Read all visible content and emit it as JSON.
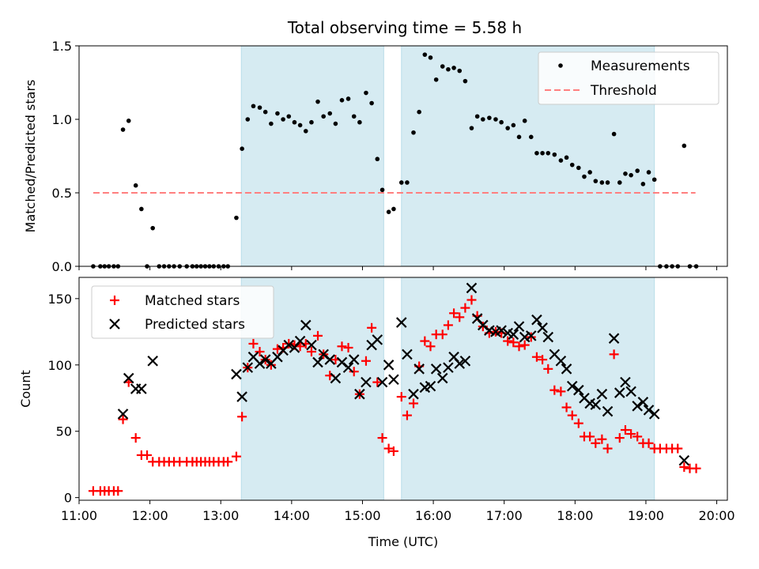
{
  "title": "Total observing time = 5.58 h",
  "chart_data": [
    {
      "type": "scatter",
      "panel": "top",
      "ylabel": "Matched/Predicted stars",
      "xlabel": "",
      "xlim": [
        11.0,
        20.15
      ],
      "ylim": [
        0.0,
        1.5
      ],
      "yticks": [
        0.0,
        0.5,
        1.0,
        1.5
      ],
      "ytick_labels": [
        "0.0",
        "0.5",
        "1.0",
        "1.5"
      ],
      "legend": {
        "placement": "top-right",
        "entries": [
          "Measurements",
          "Threshold"
        ]
      },
      "shaded_spans": [
        [
          13.29,
          15.3
        ],
        [
          15.55,
          19.12
        ]
      ],
      "threshold": {
        "name": "Threshold",
        "y": 0.5,
        "x_start": 11.2,
        "x_end": 19.7,
        "color": "#ff7f7f",
        "style": "dashed"
      },
      "series": [
        {
          "name": "Measurements",
          "color": "#000000",
          "x": [
            11.2,
            11.3,
            11.36,
            11.42,
            11.49,
            11.55,
            11.62,
            11.7,
            11.8,
            11.88,
            11.96,
            12.04,
            12.13,
            12.2,
            12.27,
            12.34,
            12.42,
            12.52,
            12.6,
            12.66,
            12.72,
            12.78,
            12.84,
            12.9,
            12.97,
            13.04,
            13.1,
            13.22,
            13.3,
            13.38,
            13.46,
            13.55,
            13.63,
            13.71,
            13.8,
            13.88,
            13.96,
            14.04,
            14.12,
            14.2,
            14.28,
            14.37,
            14.45,
            14.54,
            14.62,
            14.71,
            14.8,
            14.88,
            14.96,
            15.05,
            15.13,
            15.21,
            15.28,
            15.37,
            15.44,
            15.55,
            15.63,
            15.72,
            15.8,
            15.88,
            15.96,
            16.04,
            16.13,
            16.21,
            16.29,
            16.37,
            16.45,
            16.54,
            16.62,
            16.7,
            16.79,
            16.88,
            16.96,
            17.05,
            17.13,
            17.21,
            17.29,
            17.38,
            17.46,
            17.54,
            17.62,
            17.71,
            17.8,
            17.88,
            17.96,
            18.05,
            18.13,
            18.21,
            18.29,
            18.38,
            18.46,
            18.55,
            18.63,
            18.71,
            18.79,
            18.88,
            18.96,
            19.04,
            19.12,
            19.2,
            19.29,
            19.37,
            19.45,
            19.54,
            19.62,
            19.71
          ],
          "y": [
            0.0,
            0.0,
            0.0,
            0.0,
            0.0,
            0.0,
            0.93,
            0.99,
            0.55,
            0.39,
            0.0,
            0.26,
            0.0,
            0.0,
            0.0,
            0.0,
            0.0,
            0.0,
            0.0,
            0.0,
            0.0,
            0.0,
            0.0,
            0.0,
            0.0,
            0.0,
            0.0,
            0.33,
            0.8,
            1.0,
            1.09,
            1.08,
            1.05,
            0.97,
            1.04,
            1.0,
            1.02,
            0.98,
            0.96,
            0.92,
            0.98,
            1.12,
            1.02,
            1.04,
            0.97,
            1.13,
            1.14,
            1.02,
            0.98,
            1.18,
            1.11,
            0.73,
            0.52,
            0.37,
            0.39,
            0.57,
            0.57,
            0.91,
            1.05,
            1.44,
            1.42,
            1.27,
            1.36,
            1.34,
            1.35,
            1.33,
            1.26,
            0.94,
            1.02,
            1.0,
            1.01,
            1.0,
            0.98,
            0.94,
            0.96,
            0.88,
            0.99,
            0.88,
            0.77,
            0.77,
            0.77,
            0.76,
            0.72,
            0.74,
            0.69,
            0.67,
            0.61,
            0.64,
            0.58,
            0.57,
            0.57,
            0.9,
            0.57,
            0.63,
            0.62,
            0.65,
            0.56,
            0.64,
            0.59,
            0.0,
            0.0,
            0.0,
            0.0,
            0.82,
            0.0,
            0.0
          ]
        }
      ]
    },
    {
      "type": "scatter",
      "panel": "bottom",
      "xlabel": "Time (UTC)",
      "ylabel": "Count",
      "xlim": [
        11.0,
        20.15
      ],
      "ylim": [
        -2,
        166
      ],
      "yticks": [
        0,
        50,
        100,
        150
      ],
      "ytick_labels": [
        "0",
        "50",
        "100",
        "150"
      ],
      "xticks": [
        11,
        12,
        13,
        14,
        15,
        16,
        17,
        18,
        19,
        20
      ],
      "xtick_labels": [
        "11:00",
        "12:00",
        "13:00",
        "14:00",
        "15:00",
        "16:00",
        "17:00",
        "18:00",
        "19:00",
        "20:00"
      ],
      "legend": {
        "placement": "top-left",
        "entries": [
          "Matched stars",
          "Predicted stars"
        ]
      },
      "shaded_spans": [
        [
          13.29,
          15.3
        ],
        [
          15.55,
          19.12
        ]
      ],
      "series": [
        {
          "name": "Matched stars",
          "marker": "+",
          "color": "#ff0000",
          "x": [
            11.2,
            11.3,
            11.36,
            11.42,
            11.49,
            11.55,
            11.62,
            11.7,
            11.8,
            11.88,
            11.96,
            12.04,
            12.13,
            12.2,
            12.27,
            12.34,
            12.42,
            12.52,
            12.6,
            12.66,
            12.72,
            12.78,
            12.84,
            12.9,
            12.97,
            13.04,
            13.1,
            13.22,
            13.3,
            13.38,
            13.46,
            13.55,
            13.63,
            13.71,
            13.8,
            13.88,
            13.96,
            14.04,
            14.12,
            14.2,
            14.28,
            14.37,
            14.45,
            14.54,
            14.62,
            14.71,
            14.8,
            14.88,
            14.96,
            15.05,
            15.13,
            15.21,
            15.28,
            15.37,
            15.44,
            15.55,
            15.63,
            15.72,
            15.8,
            15.88,
            15.96,
            16.04,
            16.13,
            16.21,
            16.29,
            16.37,
            16.45,
            16.54,
            16.62,
            16.7,
            16.79,
            16.88,
            16.96,
            17.05,
            17.13,
            17.21,
            17.29,
            17.38,
            17.46,
            17.54,
            17.62,
            17.71,
            17.8,
            17.88,
            17.96,
            18.05,
            18.13,
            18.21,
            18.29,
            18.38,
            18.46,
            18.55,
            18.63,
            18.71,
            18.79,
            18.88,
            18.96,
            19.04,
            19.12,
            19.2,
            19.29,
            19.37,
            19.45,
            19.54,
            19.62,
            19.71
          ],
          "y": [
            5,
            5,
            5,
            5,
            5,
            5,
            59,
            87,
            45,
            32,
            32,
            27,
            27,
            27,
            27,
            27,
            27,
            27,
            27,
            27,
            27,
            27,
            27,
            27,
            27,
            27,
            27,
            31,
            61,
            98,
            116,
            110,
            104,
            100,
            112,
            113,
            116,
            115,
            114,
            116,
            110,
            122,
            108,
            92,
            104,
            114,
            113,
            95,
            78,
            103,
            128,
            87,
            45,
            37,
            35,
            76,
            62,
            71,
            99,
            118,
            114,
            123,
            123,
            130,
            139,
            136,
            143,
            149,
            137,
            129,
            124,
            125,
            124,
            118,
            117,
            114,
            115,
            121,
            106,
            104,
            97,
            81,
            80,
            68,
            62,
            56,
            46,
            46,
            41,
            44,
            37,
            108,
            45,
            51,
            48,
            46,
            41,
            41,
            37,
            37,
            37,
            37,
            37,
            23,
            22,
            22
          ]
        },
        {
          "name": "Predicted stars",
          "marker": "x",
          "color": "#000000",
          "x": [
            11.62,
            11.7,
            11.8,
            11.88,
            12.04,
            13.22,
            13.3,
            13.38,
            13.46,
            13.55,
            13.63,
            13.71,
            13.8,
            13.88,
            13.96,
            14.04,
            14.12,
            14.2,
            14.28,
            14.37,
            14.45,
            14.54,
            14.62,
            14.71,
            14.8,
            14.88,
            14.96,
            15.05,
            15.13,
            15.21,
            15.28,
            15.37,
            15.44,
            15.55,
            15.63,
            15.72,
            15.8,
            15.88,
            15.96,
            16.04,
            16.13,
            16.21,
            16.29,
            16.37,
            16.45,
            16.54,
            16.62,
            16.7,
            16.79,
            16.88,
            16.96,
            17.05,
            17.13,
            17.21,
            17.29,
            17.38,
            17.46,
            17.54,
            17.62,
            17.71,
            17.8,
            17.88,
            17.96,
            18.05,
            18.13,
            18.21,
            18.29,
            18.38,
            18.46,
            18.55,
            18.63,
            18.71,
            18.79,
            18.88,
            18.96,
            19.04,
            19.12,
            19.54
          ],
          "y": [
            63,
            90,
            82,
            82,
            103,
            93,
            76,
            98,
            106,
            101,
            104,
            101,
            106,
            111,
            115,
            113,
            118,
            130,
            115,
            102,
            108,
            104,
            90,
            102,
            98,
            104,
            78,
            87,
            115,
            119,
            87,
            100,
            89,
            132,
            108,
            78,
            97,
            83,
            84,
            97,
            90,
            98,
            106,
            101,
            103,
            158,
            135,
            130,
            126,
            125,
            126,
            124,
            123,
            129,
            121,
            122,
            134,
            128,
            121,
            108,
            103,
            97,
            84,
            81,
            75,
            71,
            70,
            78,
            65,
            120,
            79,
            87,
            80,
            69,
            72,
            66,
            63,
            28
          ]
        }
      ]
    }
  ]
}
